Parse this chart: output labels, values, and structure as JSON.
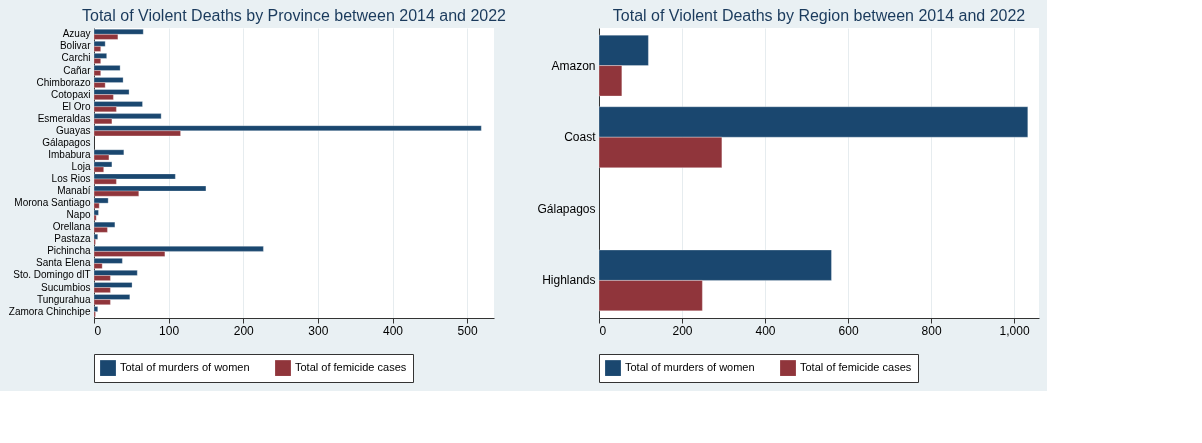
{
  "chart_data": [
    {
      "type": "bar",
      "orientation": "horizontal",
      "title": "Total of Violent Deaths by Province between 2014 and 2022",
      "categories": [
        "Azuay",
        "Bolivar",
        "Carchi",
        "Cañar",
        "Chimborazo",
        "Cotopaxi",
        "El Oro",
        "Esmeraldas",
        "Guayas",
        "Gálapagos",
        "Imbabura",
        "Loja",
        "Los Rios",
        "Manabí",
        "Morona Santiago",
        "Napo",
        "Orellana",
        "Pastaza",
        "Pichincha",
        "Santa Elena",
        "Sto. Domingo dlT",
        "Sucumbios",
        "Tungurahua",
        "Zamora Chinchipe"
      ],
      "series": [
        {
          "name": "Total of murders of women",
          "color": "#1a476f",
          "values": [
            66,
            15,
            17,
            35,
            39,
            47,
            65,
            90,
            519,
            null,
            40,
            24,
            109,
            150,
            19,
            6,
            28,
            5,
            227,
            38,
            58,
            51,
            48,
            5
          ]
        },
        {
          "name": "Total of femicide cases",
          "color": "#90353b",
          "values": [
            32,
            9,
            9,
            9,
            15,
            26,
            30,
            24,
            116,
            null,
            20,
            13,
            30,
            60,
            7,
            3,
            18,
            2,
            95,
            11,
            22,
            22,
            22,
            2
          ]
        }
      ],
      "xlim": [
        0,
        536
      ],
      "xticks": [
        0,
        100,
        200,
        300,
        400,
        500
      ],
      "grid": "x",
      "legend": "bottom"
    },
    {
      "type": "bar",
      "orientation": "horizontal",
      "title": "Total of Violent Deaths by Region between 2014 and 2022",
      "categories": [
        "Amazon",
        "Coast",
        "Gálapagos",
        "Highlands"
      ],
      "series": [
        {
          "name": "Total of murders of women",
          "color": "#1a476f",
          "values": [
            119,
            1033,
            null,
            560
          ]
        },
        {
          "name": "Total of femicide cases",
          "color": "#90353b",
          "values": [
            55,
            296,
            null,
            249
          ]
        }
      ],
      "xlim": [
        0,
        1060
      ],
      "xticks": [
        0,
        200,
        400,
        600,
        800,
        {
          "value": 1000,
          "label": "1,000"
        }
      ],
      "grid": "x",
      "legend": "bottom"
    }
  ]
}
